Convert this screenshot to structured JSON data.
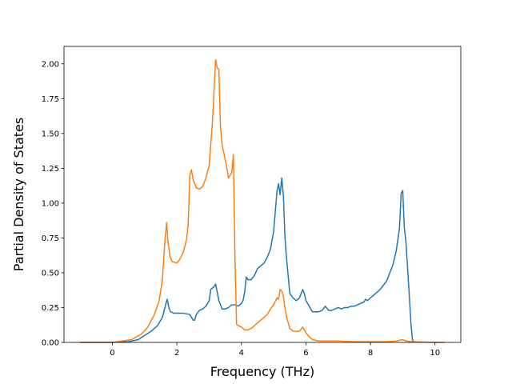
{
  "chart_data": {
    "type": "line",
    "title": "",
    "xlabel": "Frequency (THz)",
    "ylabel": "Partial Density of States",
    "xlim": [
      -1.5,
      10.8
    ],
    "ylim": [
      0,
      2.125
    ],
    "xticks": [
      0,
      2,
      4,
      6,
      8,
      10
    ],
    "xtick_labels": [
      "0",
      "2",
      "4",
      "6",
      "8",
      "10"
    ],
    "yticks": [
      0,
      0.25,
      0.5,
      0.75,
      1.0,
      1.25,
      1.5,
      1.75,
      2.0
    ],
    "ytick_labels": [
      "0.00",
      "0.25",
      "0.50",
      "0.75",
      "1.00",
      "1.25",
      "1.50",
      "1.75",
      "2.00"
    ],
    "grid": false,
    "series": [
      {
        "color": "#1f77b4",
        "x": [
          -1.0,
          0.0,
          0.5,
          0.8,
          1.0,
          1.2,
          1.4,
          1.55,
          1.65,
          1.7,
          1.75,
          1.8,
          1.9,
          2.0,
          2.2,
          2.4,
          2.5,
          2.55,
          2.6,
          2.7,
          2.8,
          2.9,
          3.0,
          3.05,
          3.15,
          3.2,
          3.25,
          3.3,
          3.4,
          3.5,
          3.6,
          3.7,
          3.8,
          3.9,
          4.0,
          4.05,
          4.1,
          4.15,
          4.2,
          4.3,
          4.4,
          4.5,
          4.6,
          4.7,
          4.8,
          4.9,
          5.0,
          5.1,
          5.15,
          5.2,
          5.25,
          5.3,
          5.35,
          5.4,
          5.5,
          5.6,
          5.7,
          5.8,
          5.9,
          5.95,
          6.0,
          6.1,
          6.2,
          6.3,
          6.4,
          6.5,
          6.6,
          6.7,
          6.8,
          6.9,
          7.0,
          7.1,
          7.2,
          7.3,
          7.4,
          7.5,
          7.6,
          7.7,
          7.8,
          7.85,
          7.9,
          8.0,
          8.1,
          8.2,
          8.3,
          8.4,
          8.5,
          8.6,
          8.7,
          8.8,
          8.9,
          8.95,
          9.0,
          9.05,
          9.1,
          9.2,
          9.25,
          9.3,
          9.35
        ],
        "y": [
          0.0,
          0.0,
          0.005,
          0.02,
          0.05,
          0.08,
          0.12,
          0.18,
          0.27,
          0.31,
          0.25,
          0.22,
          0.21,
          0.21,
          0.21,
          0.2,
          0.16,
          0.16,
          0.2,
          0.23,
          0.24,
          0.26,
          0.3,
          0.38,
          0.4,
          0.42,
          0.36,
          0.3,
          0.24,
          0.24,
          0.25,
          0.27,
          0.27,
          0.26,
          0.28,
          0.3,
          0.36,
          0.47,
          0.45,
          0.45,
          0.48,
          0.53,
          0.55,
          0.57,
          0.61,
          0.67,
          0.8,
          1.08,
          1.14,
          1.06,
          1.18,
          1.06,
          0.75,
          0.6,
          0.35,
          0.32,
          0.3,
          0.32,
          0.38,
          0.35,
          0.3,
          0.26,
          0.22,
          0.22,
          0.22,
          0.23,
          0.26,
          0.23,
          0.23,
          0.24,
          0.25,
          0.24,
          0.25,
          0.25,
          0.26,
          0.26,
          0.27,
          0.28,
          0.29,
          0.31,
          0.3,
          0.32,
          0.34,
          0.36,
          0.38,
          0.41,
          0.44,
          0.5,
          0.56,
          0.66,
          0.82,
          1.07,
          1.09,
          0.82,
          0.72,
          0.35,
          0.15,
          0.02,
          0.0
        ]
      },
      {
        "color": "#ff7f0e",
        "x": [
          -1.0,
          0.0,
          0.3,
          0.6,
          0.9,
          1.1,
          1.3,
          1.45,
          1.55,
          1.62,
          1.68,
          1.72,
          1.78,
          1.85,
          2.0,
          2.1,
          2.2,
          2.3,
          2.35,
          2.4,
          2.45,
          2.5,
          2.6,
          2.7,
          2.8,
          2.9,
          3.0,
          3.1,
          3.2,
          3.25,
          3.3,
          3.35,
          3.4,
          3.5,
          3.6,
          3.7,
          3.75,
          3.8,
          3.85,
          3.9,
          4.0,
          4.1,
          4.2,
          4.3,
          4.4,
          4.5,
          4.6,
          4.7,
          4.8,
          4.9,
          5.0,
          5.1,
          5.15,
          5.2,
          5.25,
          5.3,
          5.35,
          5.4,
          5.5,
          5.6,
          5.7,
          5.8,
          5.9,
          6.0,
          6.1,
          6.2,
          6.4,
          6.6,
          6.8,
          7.0,
          7.5,
          8.0,
          8.5,
          8.8,
          9.0,
          9.1,
          9.3,
          10.0,
          10.3
        ],
        "y": [
          0.0,
          0.0,
          0.01,
          0.02,
          0.06,
          0.11,
          0.2,
          0.3,
          0.45,
          0.7,
          0.86,
          0.73,
          0.62,
          0.58,
          0.57,
          0.6,
          0.65,
          0.74,
          0.85,
          1.2,
          1.24,
          1.17,
          1.11,
          1.1,
          1.12,
          1.18,
          1.27,
          1.58,
          2.03,
          1.97,
          1.96,
          1.55,
          1.42,
          1.31,
          1.18,
          1.22,
          1.35,
          0.6,
          0.13,
          0.12,
          0.11,
          0.09,
          0.09,
          0.1,
          0.12,
          0.14,
          0.16,
          0.18,
          0.2,
          0.24,
          0.27,
          0.32,
          0.31,
          0.38,
          0.37,
          0.33,
          0.25,
          0.18,
          0.1,
          0.08,
          0.08,
          0.08,
          0.11,
          0.07,
          0.04,
          0.02,
          0.01,
          0.01,
          0.01,
          0.01,
          0.005,
          0.005,
          0.005,
          0.01,
          0.02,
          0.01,
          0.005,
          0.0,
          0.0
        ]
      }
    ]
  }
}
